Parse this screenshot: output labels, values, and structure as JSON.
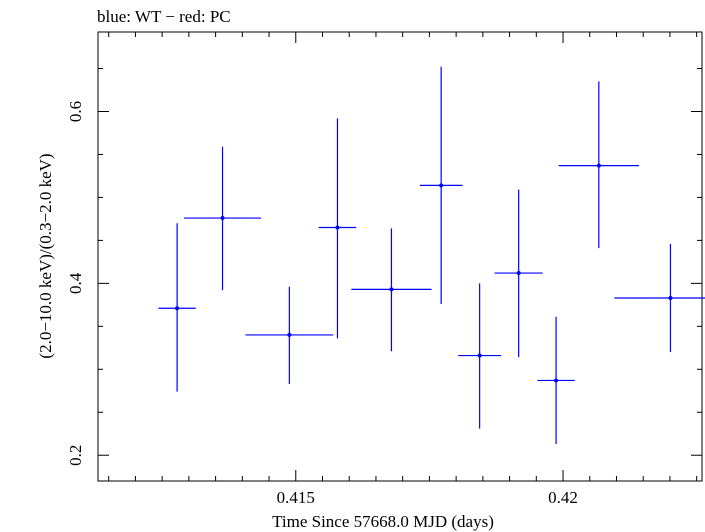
{
  "chart_data": {
    "type": "scatter",
    "title": "blue: WT − red: PC",
    "xlabel": "Time Since 57668.0 MJD (days)",
    "ylabel": "(2.0−10.0 keV)/(0.3−2.0 keV)",
    "xlim": [
      0.4113,
      0.4226
    ],
    "ylim": [
      0.17,
      0.6925
    ],
    "x_ticks": [
      {
        "value": 0.415,
        "label": "0.415"
      },
      {
        "value": 0.42,
        "label": "0.42"
      }
    ],
    "y_ticks": [
      {
        "value": 0.2,
        "label": "0.2"
      },
      {
        "value": 0.4,
        "label": "0.4"
      },
      {
        "value": 0.6,
        "label": "0.6"
      }
    ],
    "series": [
      {
        "color": "#0000ff",
        "points": [
          {
            "x": 0.41278,
            "y": 0.371,
            "xerr": 0.00035,
            "ylo": 0.274,
            "yhi": 0.47
          },
          {
            "x": 0.41363,
            "y": 0.476,
            "xerr": 0.00072,
            "ylo": 0.392,
            "yhi": 0.559
          },
          {
            "x": 0.41488,
            "y": 0.34,
            "xerr": 0.00082,
            "ylo": 0.283,
            "yhi": 0.396
          },
          {
            "x": 0.41578,
            "y": 0.465,
            "xerr": 0.00035,
            "ylo": 0.336,
            "yhi": 0.592
          },
          {
            "x": 0.41679,
            "y": 0.393,
            "xerr": 0.00075,
            "ylo": 0.321,
            "yhi": 0.464
          },
          {
            "x": 0.41772,
            "y": 0.514,
            "xerr": 0.0004,
            "ylo": 0.376,
            "yhi": 0.652
          },
          {
            "x": 0.41844,
            "y": 0.316,
            "xerr": 0.0004,
            "ylo": 0.231,
            "yhi": 0.4
          },
          {
            "x": 0.41917,
            "y": 0.412,
            "xerr": 0.00045,
            "ylo": 0.314,
            "yhi": 0.509
          },
          {
            "x": 0.41987,
            "y": 0.287,
            "xerr": 0.00035,
            "ylo": 0.213,
            "yhi": 0.361
          },
          {
            "x": 0.42067,
            "y": 0.537,
            "xerr": 0.00075,
            "ylo": 0.441,
            "yhi": 0.635
          },
          {
            "x": 0.42201,
            "y": 0.383,
            "xerr": 0.00105,
            "ylo": 0.32,
            "yhi": 0.446
          }
        ]
      }
    ]
  }
}
